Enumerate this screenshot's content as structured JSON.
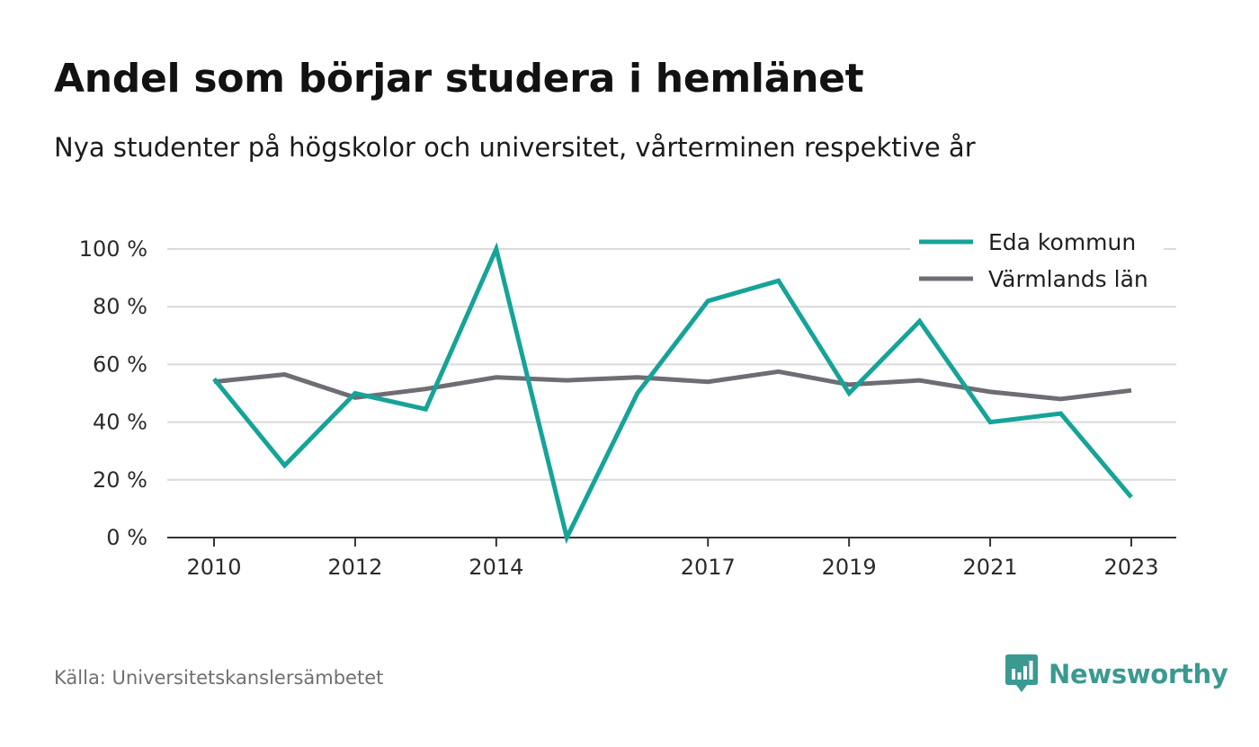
{
  "header": {
    "title": "Andel som börjar studera i hemlänet",
    "subtitle": "Nya studenter på högskolor och universitet, vårterminen respektive år"
  },
  "footer": {
    "source": "Källa: Universitetskanslersämbetet",
    "brand": "Newsworthy",
    "brand_icon": "newsworthy-logo-icon"
  },
  "colors": {
    "eda": "#16a398",
    "varmland": "#6f6d74",
    "grid": "#dadada",
    "brand": "#3a9a91"
  },
  "chart_data": {
    "type": "line",
    "x": [
      2010,
      2011,
      2012,
      2013,
      2014,
      2015,
      2016,
      2017,
      2018,
      2019,
      2020,
      2021,
      2022,
      2023
    ],
    "x_tick_labels": [
      "2010",
      "2012",
      "2014",
      "2017",
      "2019",
      "2021",
      "2023"
    ],
    "y_tick_labels": [
      "0 %",
      "20 %",
      "40 %",
      "60 %",
      "80 %",
      "100 %"
    ],
    "y_ticks": [
      0,
      20,
      40,
      60,
      80,
      100
    ],
    "ylim": [
      0,
      100
    ],
    "grid": true,
    "legend_position": "top-right",
    "series": [
      {
        "name": "Eda kommun",
        "color": "#16a398",
        "values": [
          55,
          25,
          50,
          44.5,
          100,
          0,
          50,
          82,
          89,
          50,
          75,
          40,
          43,
          14
        ]
      },
      {
        "name": "Värmlands län",
        "color": "#6f6d74",
        "values": [
          54,
          56.5,
          48.5,
          51.5,
          55.5,
          54.5,
          55.5,
          54,
          57.5,
          53,
          54.5,
          50.5,
          48,
          51
        ]
      }
    ]
  }
}
